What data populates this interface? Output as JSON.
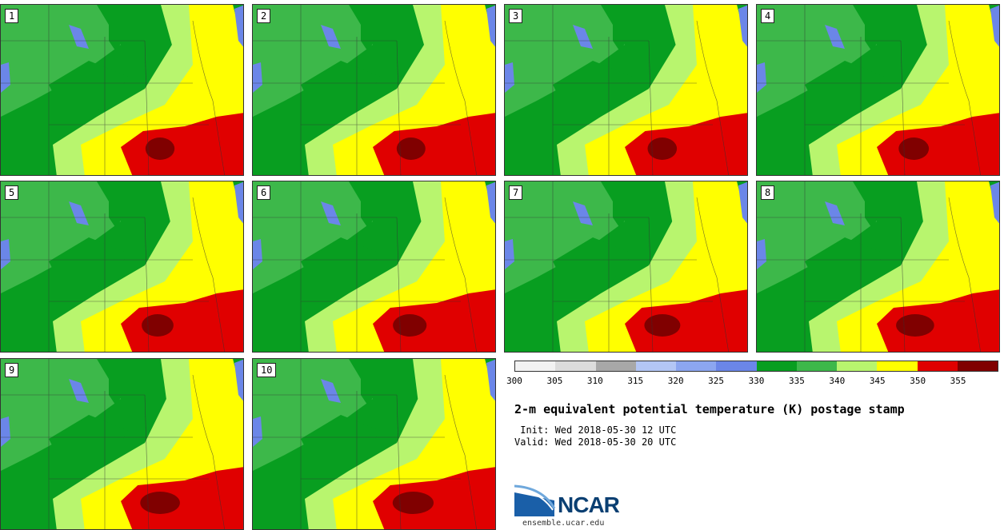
{
  "panels": [
    {
      "label": "1"
    },
    {
      "label": "2"
    },
    {
      "label": "3"
    },
    {
      "label": "4"
    },
    {
      "label": "5"
    },
    {
      "label": "6"
    },
    {
      "label": "7"
    },
    {
      "label": "8"
    },
    {
      "label": "9"
    },
    {
      "label": "10"
    }
  ],
  "colorbar": {
    "colors": [
      "#f2f2f2",
      "#dcdcdc",
      "#a8a8a8",
      "#b3c6f5",
      "#8ca6f0",
      "#6b86e8",
      "#089e20",
      "#3db84a",
      "#b8f56e",
      "#ffff00",
      "#e00000",
      "#800000"
    ],
    "ticks": [
      "300",
      "305",
      "310",
      "315",
      "320",
      "325",
      "330",
      "335",
      "340",
      "345",
      "350",
      "355"
    ]
  },
  "title": "2-m equivalent potential temperature (K) postage stamp",
  "init": " Init: Wed 2018-05-30 12 UTC",
  "valid": "Valid: Wed 2018-05-30 20 UTC",
  "logo": {
    "text": "NCAR",
    "site": "ensemble.ucar.edu"
  },
  "map_colors": {
    "dark_green": "#089e20",
    "mid_green": "#3db84a",
    "light_green": "#b8f56e",
    "yellow": "#ffff00",
    "red": "#e00000",
    "dark_red": "#800000",
    "lake": "#6b86e8"
  }
}
